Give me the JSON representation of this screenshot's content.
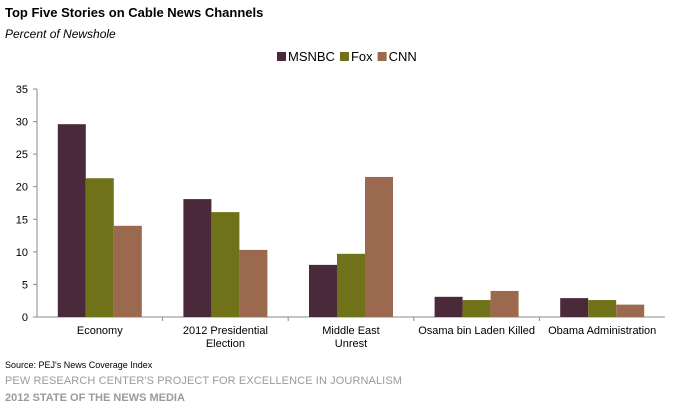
{
  "header": {
    "title": "Top Five Stories on Cable News Channels",
    "subtitle": "Percent of Newshole"
  },
  "footer": {
    "source": "Source: PEJ's News Coverage Index",
    "organization": "PEW RESEARCH CENTER'S PROJECT FOR EXCELLENCE IN JOURNALISM",
    "report": "2012 STATE OF THE NEWS MEDIA"
  },
  "chart_data": {
    "type": "bar",
    "title": "Top Five Stories on Cable News Channels",
    "subtitle": "Percent of Newshole",
    "categories": [
      [
        "Economy"
      ],
      [
        "2012 Presidential",
        "Election"
      ],
      [
        "Middle East",
        "Unrest"
      ],
      [
        "Osama bin Laden Killed"
      ],
      [
        "Obama Administration"
      ]
    ],
    "series": [
      {
        "name": "MSNBC",
        "color": "#4a2a3a",
        "values": [
          29.6,
          18.1,
          8.0,
          3.1,
          2.9
        ]
      },
      {
        "name": "Fox",
        "color": "#6f7219",
        "values": [
          21.3,
          16.1,
          9.7,
          2.6,
          2.6
        ]
      },
      {
        "name": "CNN",
        "color": "#9b6a4e",
        "values": [
          14.0,
          10.3,
          21.5,
          4.0,
          1.9
        ]
      }
    ],
    "ylim": [
      0,
      35
    ],
    "yticks": [
      0,
      5,
      10,
      15,
      20,
      25,
      30,
      35
    ],
    "legend_position": "top-center",
    "grid": false
  }
}
